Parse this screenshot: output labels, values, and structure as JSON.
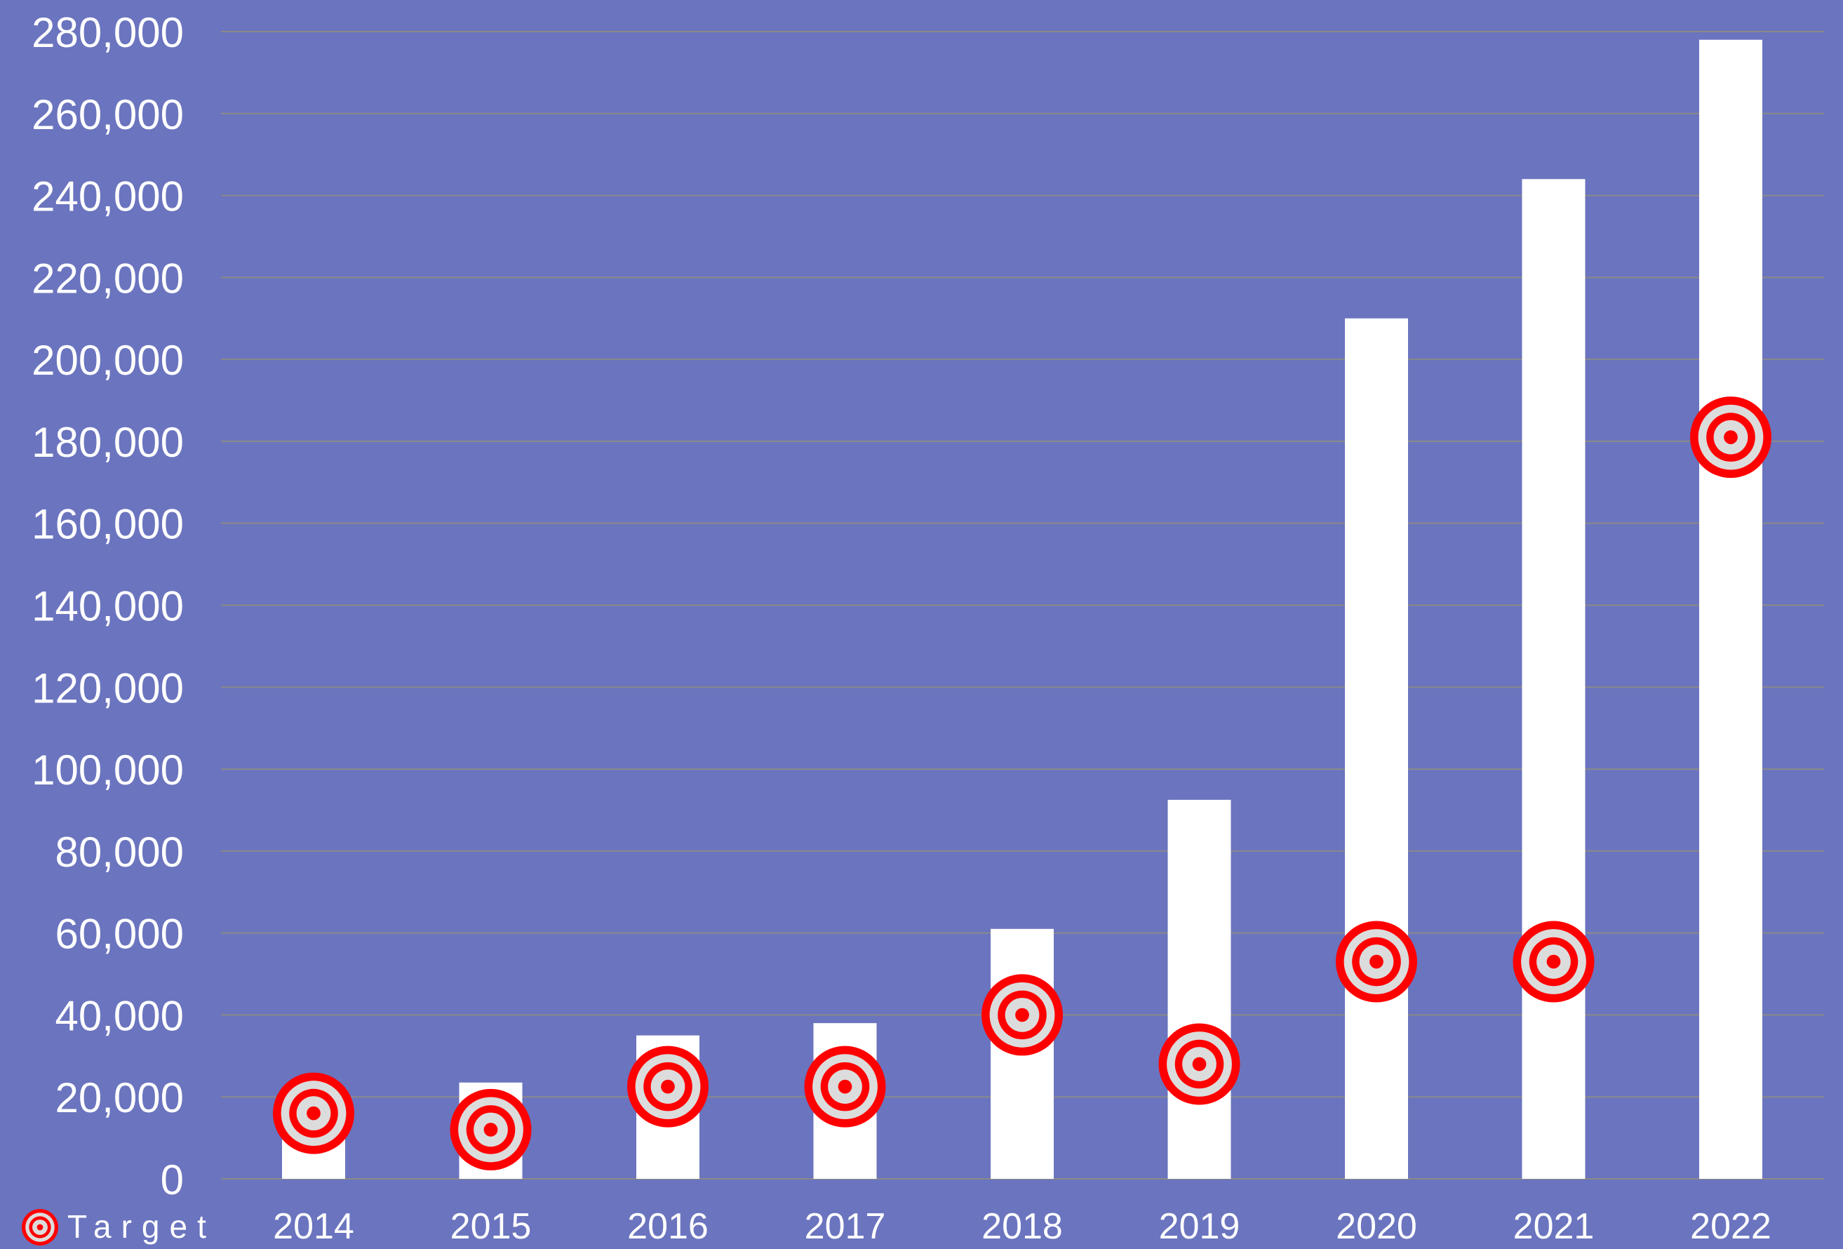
{
  "colors": {
    "background": "#6b74be",
    "bar": "#ffffff",
    "gridline": "#8a8a8a",
    "target_ring": "#ff0000",
    "target_fill": "#dcdcdc",
    "text": "#ffffff"
  },
  "legend": {
    "label": "Target",
    "icon": "target-icon",
    "placement": "bottom-left"
  },
  "chart_data": {
    "type": "bar",
    "title": "",
    "xlabel": "",
    "ylabel": "",
    "categories": [
      "2014",
      "2015",
      "2016",
      "2017",
      "2018",
      "2019",
      "2020",
      "2021",
      "2022"
    ],
    "ylim": [
      0,
      280000
    ],
    "yticks": [
      0,
      20000,
      40000,
      60000,
      80000,
      100000,
      120000,
      140000,
      160000,
      180000,
      200000,
      220000,
      240000,
      260000,
      280000
    ],
    "ytick_labels": [
      "0",
      "20,000",
      "40,000",
      "60,000",
      "80,000",
      "100,000",
      "120,000",
      "140,000",
      "160,000",
      "180,000",
      "200,000",
      "220,000",
      "240,000",
      "260,000",
      "280,000"
    ],
    "grid": true,
    "series": [
      {
        "values": [
          16000,
          23500,
          35000,
          38000,
          61000,
          92500,
          210000,
          244000,
          278000
        ]
      },
      {
        "name": "Target",
        "marker": "target-icon",
        "values": [
          16000,
          12000,
          22500,
          22500,
          40000,
          28000,
          53000,
          53000,
          181000
        ]
      }
    ]
  }
}
